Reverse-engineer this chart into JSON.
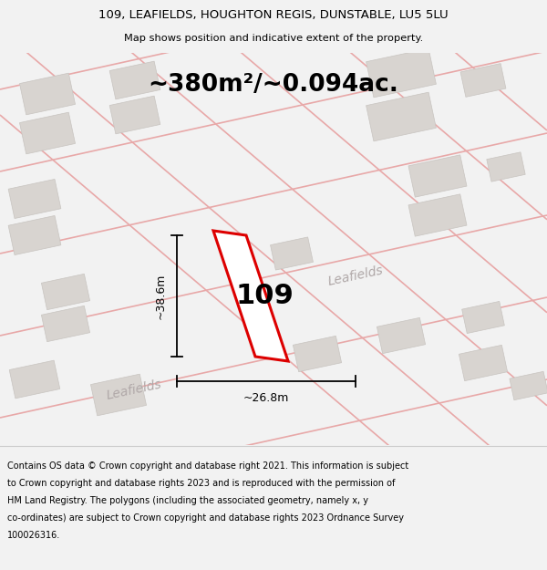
{
  "title_line1": "109, LEAFIELDS, HOUGHTON REGIS, DUNSTABLE, LU5 5LU",
  "title_line2": "Map shows position and indicative extent of the property.",
  "area_text": "~380m²/~0.094ac.",
  "plot_label": "109",
  "dim_width": "~26.8m",
  "dim_height": "~38.6m",
  "street_label1": "Leafields",
  "street_label2": "Leafields",
  "footer_lines": [
    "Contains OS data © Crown copyright and database right 2021. This information is subject",
    "to Crown copyright and database rights 2023 and is reproduced with the permission of",
    "HM Land Registry. The polygons (including the associated geometry, namely x, y",
    "co-ordinates) are subject to Crown copyright and database rights 2023 Ordnance Survey",
    "100026316."
  ],
  "bg_color": "#f2f2f2",
  "map_bg_color": "#ffffff",
  "plot_color": "#dd0000",
  "building_color": "#d8d4d0",
  "building_edge_color": "#c8c4c0",
  "road_line_color": "#e8a8a8",
  "dim_line_color": "#000000",
  "footer_bg_color": "#ffffff",
  "title_bg_color": "#f2f2f2"
}
